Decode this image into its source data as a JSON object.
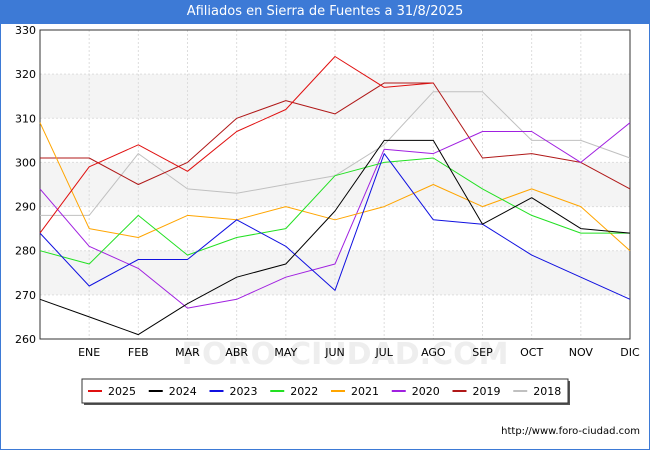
{
  "title": "Afiliados en Sierra de Fuentes a 31/8/2025",
  "watermark": "FORO-CIUDAD.COM",
  "footer_url": "http://www.foro-ciudad.com",
  "chart_data": {
    "type": "line",
    "categories": [
      "",
      "ENE",
      "FEB",
      "MAR",
      "ABR",
      "MAY",
      "JUN",
      "JUL",
      "AGO",
      "SEP",
      "OCT",
      "NOV",
      "DIC"
    ],
    "ylim": [
      260,
      330
    ],
    "yticks": [
      260,
      270,
      280,
      290,
      300,
      310,
      320,
      330
    ],
    "grid": true,
    "legend_position": "bottom",
    "series": [
      {
        "name": "2025",
        "color": "#e01010",
        "values": [
          284,
          299,
          304,
          298,
          307,
          312,
          324,
          317,
          318,
          null,
          null,
          null,
          null
        ]
      },
      {
        "name": "2024",
        "color": "#000000",
        "values": [
          269,
          265,
          261,
          268,
          274,
          277,
          289,
          305,
          305,
          286,
          292,
          285,
          284
        ]
      },
      {
        "name": "2023",
        "color": "#1010e0",
        "values": [
          284,
          272,
          278,
          278,
          287,
          281,
          271,
          302,
          287,
          286,
          279,
          274,
          269
        ]
      },
      {
        "name": "2022",
        "color": "#22e022",
        "values": [
          280,
          277,
          288,
          279,
          283,
          285,
          297,
          300,
          301,
          294,
          288,
          284,
          284
        ]
      },
      {
        "name": "2021",
        "color": "#ffa500",
        "values": [
          309,
          285,
          283,
          288,
          287,
          290,
          287,
          290,
          295,
          290,
          294,
          290,
          280
        ]
      },
      {
        "name": "2020",
        "color": "#a020e0",
        "values": [
          294,
          281,
          276,
          267,
          269,
          274,
          277,
          303,
          302,
          307,
          307,
          300,
          309
        ]
      },
      {
        "name": "2019",
        "color": "#b01818",
        "values": [
          301,
          301,
          295,
          300,
          310,
          314,
          311,
          318,
          318,
          301,
          302,
          300,
          294
        ]
      },
      {
        "name": "2018",
        "color": "#c0c0c0",
        "values": [
          288,
          288,
          302,
          294,
          293,
          295,
          297,
          304,
          316,
          316,
          305,
          305,
          301
        ]
      }
    ]
  }
}
